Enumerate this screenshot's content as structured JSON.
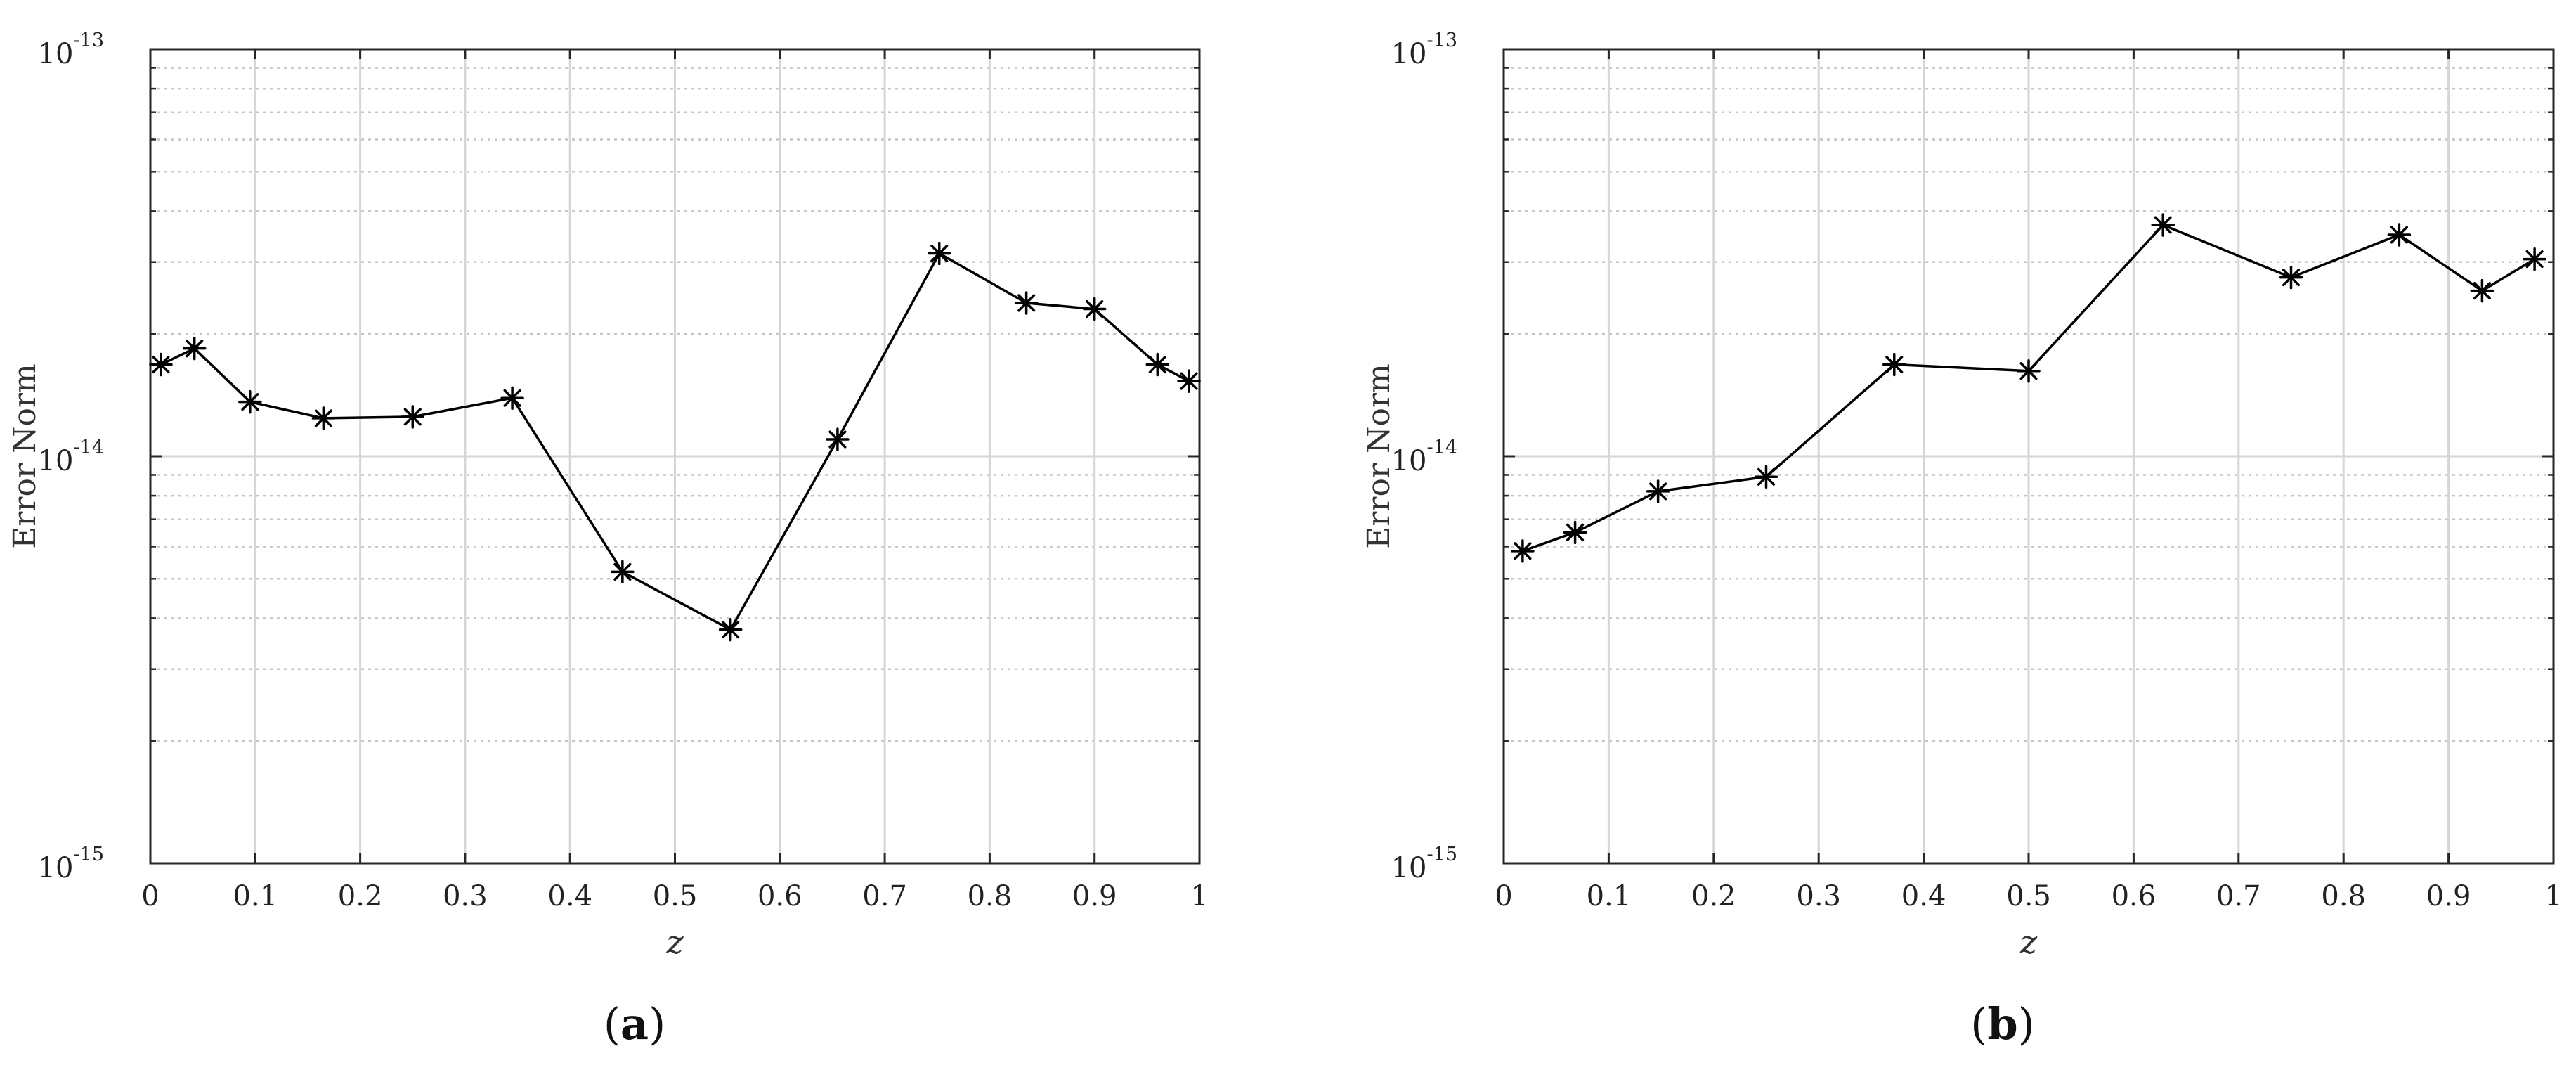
{
  "chart_data": [
    {
      "type": "line",
      "caption_letter": "a",
      "xlabel": "z",
      "ylabel": "Error Norm",
      "xlim": [
        0,
        1
      ],
      "ylim": [
        1e-15,
        1e-13
      ],
      "yscale": "log",
      "grid": true,
      "marker": "asterisk",
      "x_ticks": [
        "0",
        "0.1",
        "0.2",
        "0.3",
        "0.4",
        "0.5",
        "0.6",
        "0.7",
        "0.8",
        "0.9",
        "1"
      ],
      "y_ticks": [
        {
          "base": "10",
          "exp": "-15"
        },
        {
          "base": "10",
          "exp": "-14"
        },
        {
          "base": "10",
          "exp": "-13"
        }
      ],
      "x": [
        0.01,
        0.042,
        0.095,
        0.165,
        0.25,
        0.345,
        0.45,
        0.553,
        0.655,
        0.752,
        0.835,
        0.9,
        0.96,
        0.99
      ],
      "y": [
        1.68e-14,
        1.84e-14,
        1.36e-14,
        1.24e-14,
        1.25e-14,
        1.39e-14,
        5.2e-15,
        3.75e-15,
        1.1e-14,
        3.15e-14,
        2.38e-14,
        2.3e-14,
        1.68e-14,
        1.53e-14
      ]
    },
    {
      "type": "line",
      "caption_letter": "b",
      "xlabel": "z",
      "ylabel": "Error Norm",
      "xlim": [
        0,
        1
      ],
      "ylim": [
        1e-15,
        1e-13
      ],
      "yscale": "log",
      "grid": true,
      "marker": "asterisk",
      "x_ticks": [
        "0",
        "0.1",
        "0.2",
        "0.3",
        "0.4",
        "0.5",
        "0.6",
        "0.7",
        "0.8",
        "0.9",
        "1"
      ],
      "y_ticks": [
        {
          "base": "10",
          "exp": "-15"
        },
        {
          "base": "10",
          "exp": "-14"
        },
        {
          "base": "10",
          "exp": "-13"
        }
      ],
      "x": [
        0.018,
        0.068,
        0.147,
        0.25,
        0.372,
        0.5,
        0.628,
        0.75,
        0.853,
        0.932,
        0.982
      ],
      "y": [
        5.85e-15,
        6.5e-15,
        8.2e-15,
        8.9e-15,
        1.68e-14,
        1.62e-14,
        3.7e-14,
        2.75e-14,
        3.5e-14,
        2.55e-14,
        3.05e-14
      ]
    }
  ]
}
